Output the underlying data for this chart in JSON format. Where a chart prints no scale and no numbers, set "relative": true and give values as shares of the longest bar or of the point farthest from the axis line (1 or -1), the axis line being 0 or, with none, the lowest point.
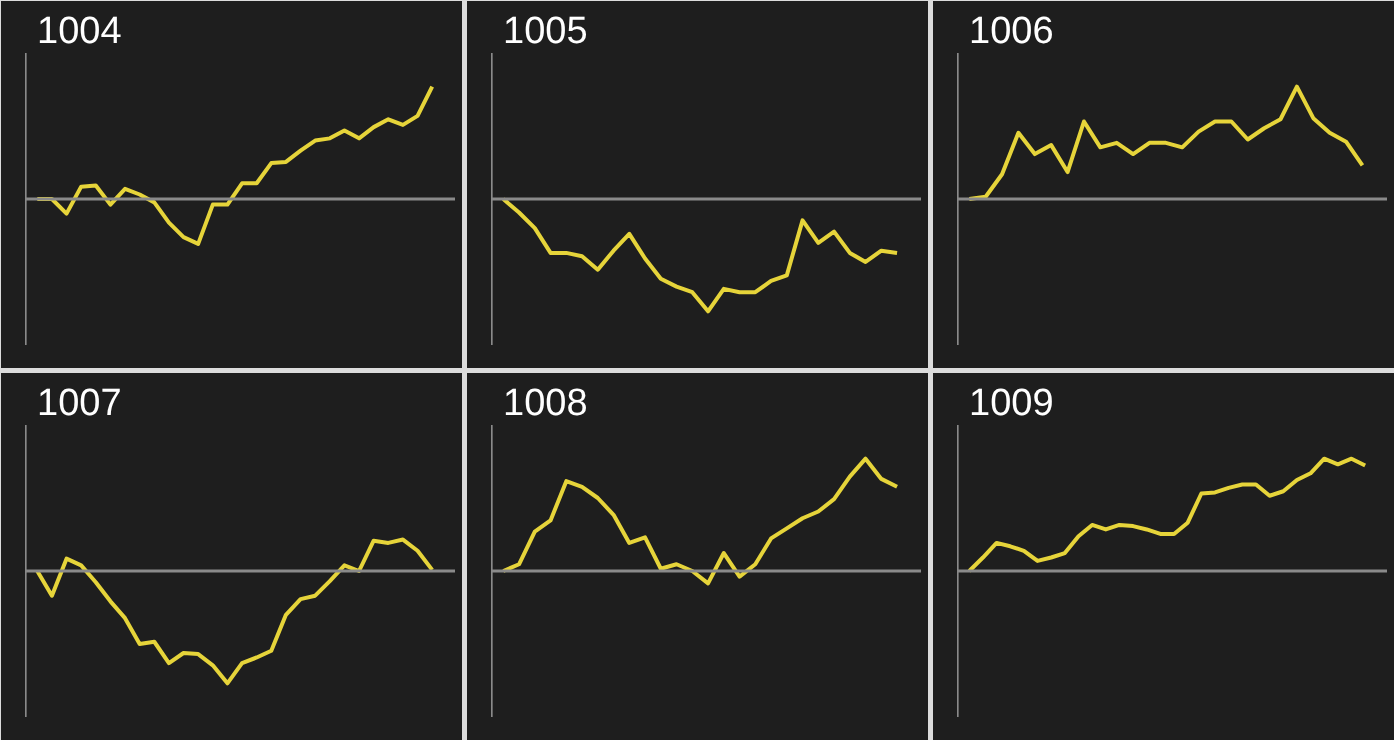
{
  "chart_data": [
    {
      "type": "line",
      "title": "1004",
      "relative": true,
      "categories": [
        null,
        null,
        null,
        null,
        null,
        null,
        null,
        null,
        null,
        null,
        null,
        null,
        null,
        null,
        null,
        null,
        null,
        null,
        null,
        null,
        null,
        null,
        null,
        null,
        null,
        null,
        null,
        null
      ],
      "series": [
        {
          "color": "#e6d43a",
          "values": [
            0,
            0,
            -0.13,
            0.11,
            0.12,
            -0.05,
            0.09,
            0.04,
            -0.03,
            -0.21,
            -0.34,
            -0.4,
            -0.05,
            -0.05,
            0.14,
            0.14,
            0.32,
            0.33,
            0.43,
            0.52,
            0.54,
            0.61,
            0.54,
            0.64,
            0.71,
            0.66,
            0.74,
            1
          ]
        }
      ]
    },
    {
      "type": "line",
      "title": "1005",
      "relative": true,
      "categories": [
        null,
        null,
        null,
        null,
        null,
        null,
        null,
        null,
        null,
        null,
        null,
        null,
        null,
        null,
        null,
        null,
        null,
        null,
        null,
        null,
        null,
        null,
        null,
        null,
        null,
        null
      ],
      "series": [
        {
          "color": "#e6d43a",
          "values": [
            0,
            -0.12,
            -0.26,
            -0.48,
            -0.48,
            -0.51,
            -0.63,
            -0.46,
            -0.31,
            -0.53,
            -0.71,
            -0.78,
            -0.83,
            -1,
            -0.8,
            -0.83,
            -0.83,
            -0.73,
            -0.68,
            -0.19,
            -0.39,
            -0.29,
            -0.48,
            -0.56,
            -0.46,
            -0.48
          ]
        }
      ]
    },
    {
      "type": "line",
      "title": "1006",
      "relative": true,
      "categories": [
        null,
        null,
        null,
        null,
        null,
        null,
        null,
        null,
        null,
        null,
        null,
        null,
        null,
        null,
        null,
        null,
        null,
        null,
        null,
        null,
        null,
        null,
        null,
        null,
        null
      ],
      "series": [
        {
          "color": "#e6d43a",
          "values": [
            0,
            0.02,
            0.22,
            0.59,
            0.4,
            0.48,
            0.24,
            0.69,
            0.46,
            0.5,
            0.4,
            0.5,
            0.5,
            0.46,
            0.6,
            0.69,
            0.69,
            0.53,
            0.63,
            0.71,
            1,
            0.72,
            0.59,
            0.51,
            0.3
          ]
        }
      ]
    },
    {
      "type": "line",
      "title": "1007",
      "relative": true,
      "categories": [
        null,
        null,
        null,
        null,
        null,
        null,
        null,
        null,
        null,
        null,
        null,
        null,
        null,
        null,
        null,
        null,
        null,
        null,
        null,
        null,
        null,
        null,
        null,
        null,
        null,
        null,
        null,
        null
      ],
      "series": [
        {
          "color": "#e6d43a",
          "values": [
            0,
            -0.22,
            0.11,
            0.05,
            -0.1,
            -0.27,
            -0.42,
            -0.65,
            -0.63,
            -0.82,
            -0.73,
            -0.74,
            -0.84,
            -1,
            -0.82,
            -0.77,
            -0.71,
            -0.39,
            -0.25,
            -0.22,
            -0.09,
            0.05,
            0,
            0.27,
            0.25,
            0.28,
            0.18,
            0.01
          ]
        }
      ]
    },
    {
      "type": "line",
      "title": "1008",
      "relative": true,
      "categories": [
        null,
        null,
        null,
        null,
        null,
        null,
        null,
        null,
        null,
        null,
        null,
        null,
        null,
        null,
        null,
        null,
        null,
        null,
        null,
        null,
        null,
        null,
        null,
        null,
        null,
        null
      ],
      "series": [
        {
          "color": "#e6d43a",
          "values": [
            0,
            0.06,
            0.35,
            0.45,
            0.8,
            0.75,
            0.65,
            0.5,
            0.25,
            0.3,
            0.02,
            0.06,
            0,
            -0.11,
            0.16,
            -0.05,
            0.06,
            0.29,
            0.38,
            0.47,
            0.53,
            0.64,
            0.84,
            1,
            0.82,
            0.75
          ]
        }
      ]
    },
    {
      "type": "line",
      "title": "1009",
      "relative": true,
      "categories": [
        null,
        null,
        null,
        null,
        null,
        null,
        null,
        null,
        null,
        null,
        null,
        null,
        null,
        null,
        null,
        null,
        null,
        null,
        null,
        null,
        null,
        null,
        null,
        null,
        null,
        null,
        null,
        null,
        null,
        null
      ],
      "series": [
        {
          "color": "#e6d43a",
          "values": [
            0,
            0.12,
            0.25,
            0.22,
            0.18,
            0.09,
            0.12,
            0.16,
            0.31,
            0.41,
            0.37,
            0.41,
            0.4,
            0.37,
            0.33,
            0.33,
            0.43,
            0.69,
            0.7,
            0.74,
            0.77,
            0.77,
            0.67,
            0.71,
            0.81,
            0.87,
            1,
            0.95,
            1,
            0.94
          ]
        }
      ]
    }
  ]
}
